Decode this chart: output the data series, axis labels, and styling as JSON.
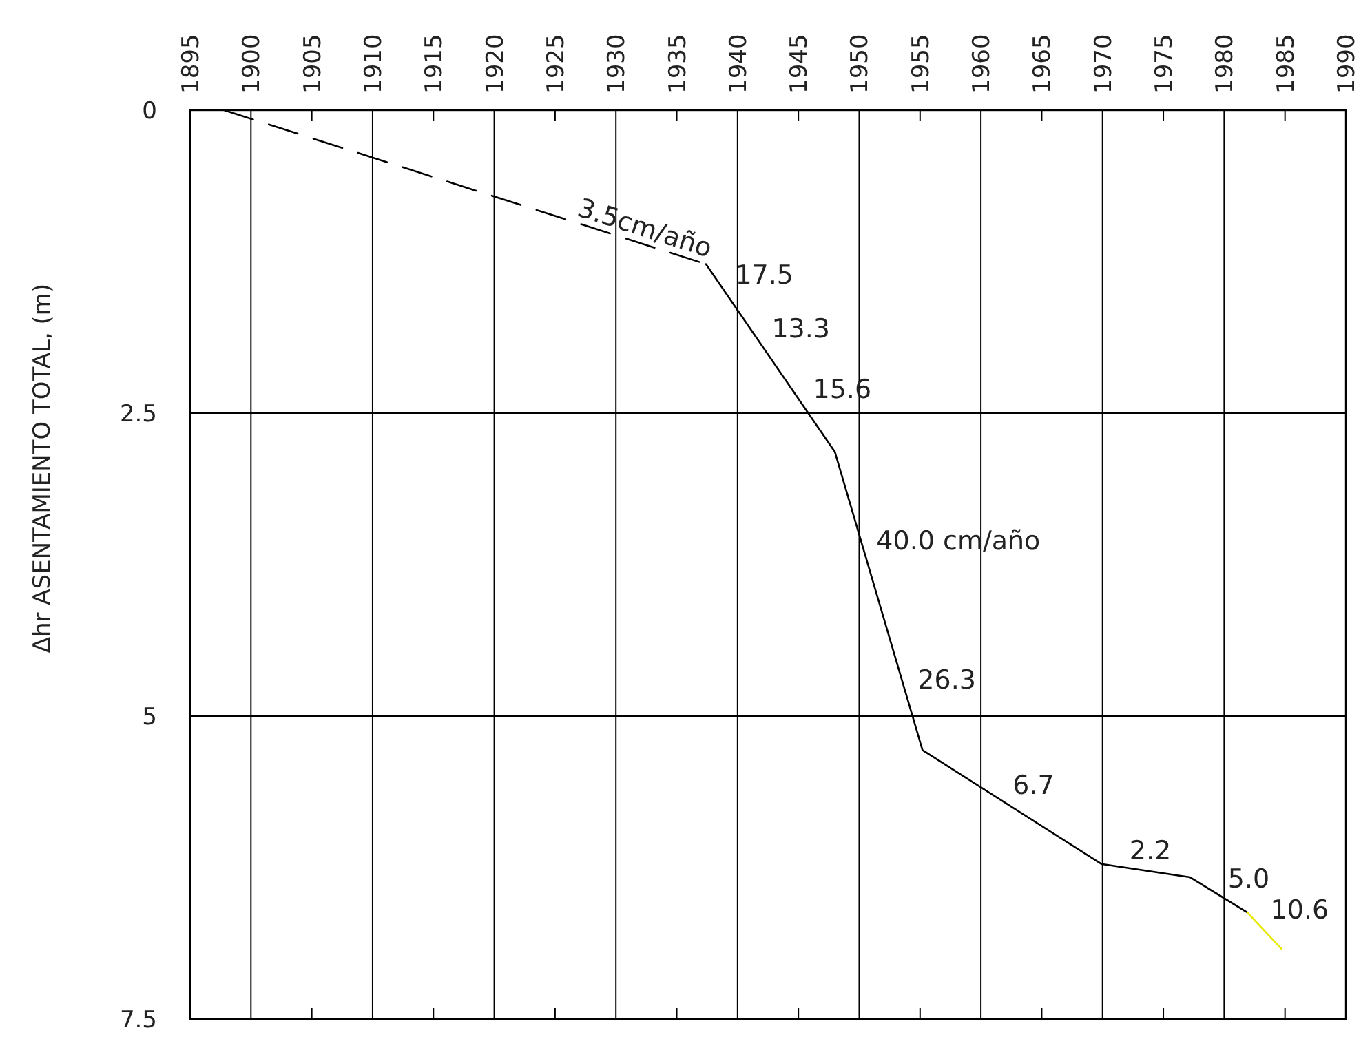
{
  "chart_data": {
    "type": "line",
    "ylabel": "Δhr ASENTAMIENTO TOTAL, (m)",
    "xlim": [
      1895,
      1990
    ],
    "xticks": [
      1895,
      1900,
      1905,
      1910,
      1915,
      1920,
      1925,
      1930,
      1935,
      1940,
      1945,
      1950,
      1955,
      1960,
      1965,
      1970,
      1975,
      1980,
      1985,
      1990
    ],
    "ylim": [
      7.5,
      0
    ],
    "yticks": [
      0,
      2.5,
      5.0,
      7.5
    ],
    "grid": true,
    "series": [
      {
        "color": "#000000",
        "line_style": "dashed",
        "x": [
          1897.8,
          1937.4
        ],
        "values": [
          0,
          1.27
        ]
      },
      {
        "color": "#000000",
        "line_style": "solid",
        "x": [
          1937.4,
          1948.0,
          1955.2,
          1969.9,
          1977.2,
          1981.9
        ],
        "values": [
          1.27,
          2.82,
          5.28,
          6.22,
          6.33,
          6.62
        ]
      },
      {
        "color": "#e8e800",
        "line_style": "solid",
        "x": [
          1981.9,
          1984.7
        ],
        "values": [
          6.62,
          6.92
        ]
      }
    ],
    "annotations": [
      {
        "text": "3.5cm/año",
        "x": 1928.7,
        "y": 0.99
      },
      {
        "text": "17.5",
        "x": 1938.9,
        "y": 1.49
      },
      {
        "text": "13.3",
        "x": 1941.9,
        "y": 1.93
      },
      {
        "text": "15.6",
        "x": 1945.3,
        "y": 2.43
      },
      {
        "text": "40.0 cm/año",
        "x": 1950.5,
        "y": 3.68
      },
      {
        "text": "26.3",
        "x": 1953.9,
        "y": 4.83
      },
      {
        "text": "6.7",
        "x": 1961.7,
        "y": 5.7
      },
      {
        "text": "2.2",
        "x": 1971.3,
        "y": 6.24
      },
      {
        "text": "5.0",
        "x": 1979.4,
        "y": 6.47
      },
      {
        "text": "10.6",
        "x": 1982.9,
        "y": 6.73
      }
    ]
  }
}
